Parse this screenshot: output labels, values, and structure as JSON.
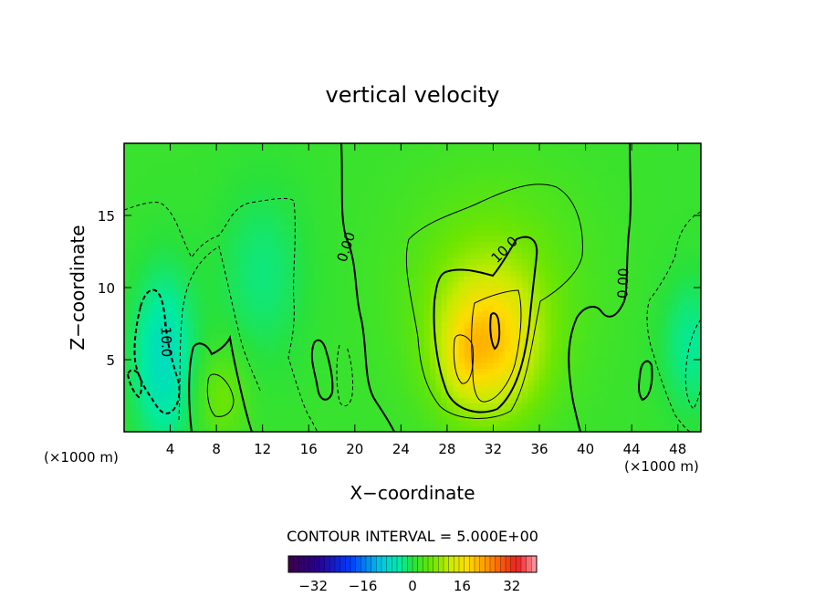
{
  "chart_data": {
    "type": "contour",
    "title": "vertical velocity",
    "xlabel": "X−coordinate",
    "ylabel": "Z−coordinate",
    "x_unit_left": "(×1000 m)",
    "x_unit_right": "(×1000 m)",
    "xlim": [
      0,
      50
    ],
    "ylim": [
      0,
      20
    ],
    "x_ticks": [
      4,
      8,
      12,
      16,
      20,
      24,
      28,
      32,
      36,
      40,
      44,
      48
    ],
    "y_ticks": [
      5,
      10,
      15
    ],
    "contour_interval_text": "CONTOUR INTERVAL = 5.000E+00",
    "contour_labels": [
      {
        "text": "0.00",
        "x": 19.3,
        "z": 12.8,
        "angle": -72
      },
      {
        "text": "10.0",
        "x": 33.0,
        "z": 12.6,
        "angle": -45
      },
      {
        "text": "0.00",
        "x": 43.3,
        "z": 10.3,
        "angle": -88
      },
      {
        "text": "-10.0",
        "x": 3.6,
        "z": 6.4,
        "angle": 88
      }
    ],
    "features": [
      {
        "kind": "updraft",
        "x": 31.6,
        "z": 6.0,
        "sx": 3.2,
        "sz": 3.6,
        "amp": 16
      },
      {
        "kind": "updraft",
        "x": 29.3,
        "z": 5.0,
        "sx": 1.3,
        "sz": 2.0,
        "amp": 3.5
      },
      {
        "kind": "updraft",
        "x": 32.0,
        "z": 11.0,
        "sx": 5.5,
        "sz": 5.0,
        "amp": 4.5
      },
      {
        "kind": "updraft",
        "x": 8.5,
        "z": 2.5,
        "sx": 1.5,
        "sz": 2.2,
        "amp": 5
      },
      {
        "kind": "downdraft",
        "x": 3.4,
        "z": 5.0,
        "sx": 2.0,
        "sz": 4.5,
        "amp": -8
      },
      {
        "kind": "downdraft",
        "x": 12.0,
        "z": 11.0,
        "sx": 2.8,
        "sz": 4.5,
        "amp": -4
      },
      {
        "kind": "downdraft",
        "x": 49.2,
        "z": 6.0,
        "sx": 2.0,
        "sz": 3.5,
        "amp": -5
      }
    ],
    "colorbar": {
      "min": -40,
      "max": 40,
      "tick_labels": [
        "−32",
        "−16",
        "0",
        "16",
        "32"
      ],
      "tick_values": [
        -32,
        -16,
        0,
        16,
        32
      ]
    },
    "grid": false,
    "legend": "colorbar-bottom-center"
  }
}
